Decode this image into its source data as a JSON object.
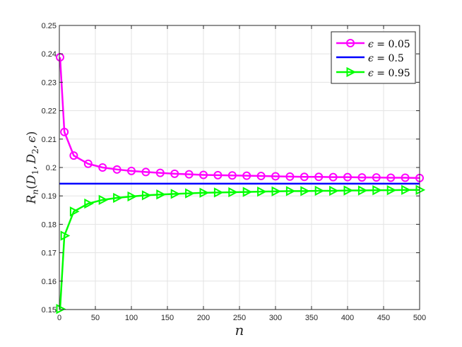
{
  "chart_data": {
    "type": "line",
    "title": "",
    "xlabel": "n",
    "ylabel": "R_n(D_1, D_2, ϵ)",
    "ylabel_parts": {
      "main": "R",
      "sub": "n",
      "args_open": "(",
      "d1": "D",
      "d1_sub": "1",
      "comma1": ",",
      "d2": "D",
      "d2_sub": "2",
      "comma2": ",",
      "eps": "ϵ",
      "args_close": ")"
    },
    "xlim": [
      0,
      500
    ],
    "ylim": [
      0.15,
      0.25
    ],
    "xticks": [
      "0",
      "50",
      "100",
      "150",
      "200",
      "250",
      "300",
      "350",
      "400",
      "450",
      "500"
    ],
    "yticks": [
      "0.15",
      "0.16",
      "0.17",
      "0.18",
      "0.19",
      "0.2",
      "0.21",
      "0.22",
      "0.23",
      "0.24",
      "0.25"
    ],
    "grid": true,
    "legend_position": "top-right",
    "series": [
      {
        "name": "ϵ = 0.05",
        "legend_parts": {
          "sym": "ϵ",
          "eq": " = ",
          "val": "0.05"
        },
        "color": "#ff00ff",
        "marker": "circle",
        "x": [
          1,
          7,
          20,
          40,
          60,
          80,
          100,
          120,
          140,
          160,
          180,
          200,
          220,
          240,
          260,
          280,
          300,
          320,
          340,
          360,
          380,
          400,
          420,
          440,
          460,
          480,
          500
        ],
        "y": [
          0.2388,
          0.2125,
          0.2042,
          0.2013,
          0.2,
          0.1993,
          0.1988,
          0.1984,
          0.1981,
          0.1978,
          0.1976,
          0.1974,
          0.1973,
          0.1972,
          0.1971,
          0.197,
          0.1969,
          0.1968,
          0.1967,
          0.1967,
          0.1966,
          0.1966,
          0.1965,
          0.1965,
          0.1964,
          0.1964,
          0.1963
        ]
      },
      {
        "name": "ϵ = 0.5",
        "legend_parts": {
          "sym": "ϵ",
          "eq": " = ",
          "val": "0.5"
        },
        "color": "#0000ff",
        "marker": "none",
        "x": [
          0,
          500
        ],
        "y": [
          0.1943,
          0.1943
        ]
      },
      {
        "name": "ϵ = 0.95",
        "legend_parts": {
          "sym": "ϵ",
          "eq": " = ",
          "val": "0.95"
        },
        "color": "#00ff00",
        "marker": "triangle-right",
        "x": [
          1,
          7,
          20,
          40,
          60,
          80,
          100,
          120,
          140,
          160,
          180,
          200,
          220,
          240,
          260,
          280,
          300,
          320,
          340,
          360,
          380,
          400,
          420,
          440,
          460,
          480,
          500
        ],
        "y": [
          0.1502,
          0.176,
          0.1845,
          0.1873,
          0.1886,
          0.1893,
          0.1898,
          0.1902,
          0.1905,
          0.1907,
          0.1909,
          0.1911,
          0.1912,
          0.1913,
          0.1914,
          0.1915,
          0.1916,
          0.1917,
          0.1917,
          0.1918,
          0.1918,
          0.1919,
          0.1919,
          0.192,
          0.192,
          0.1921,
          0.1921
        ]
      }
    ]
  }
}
